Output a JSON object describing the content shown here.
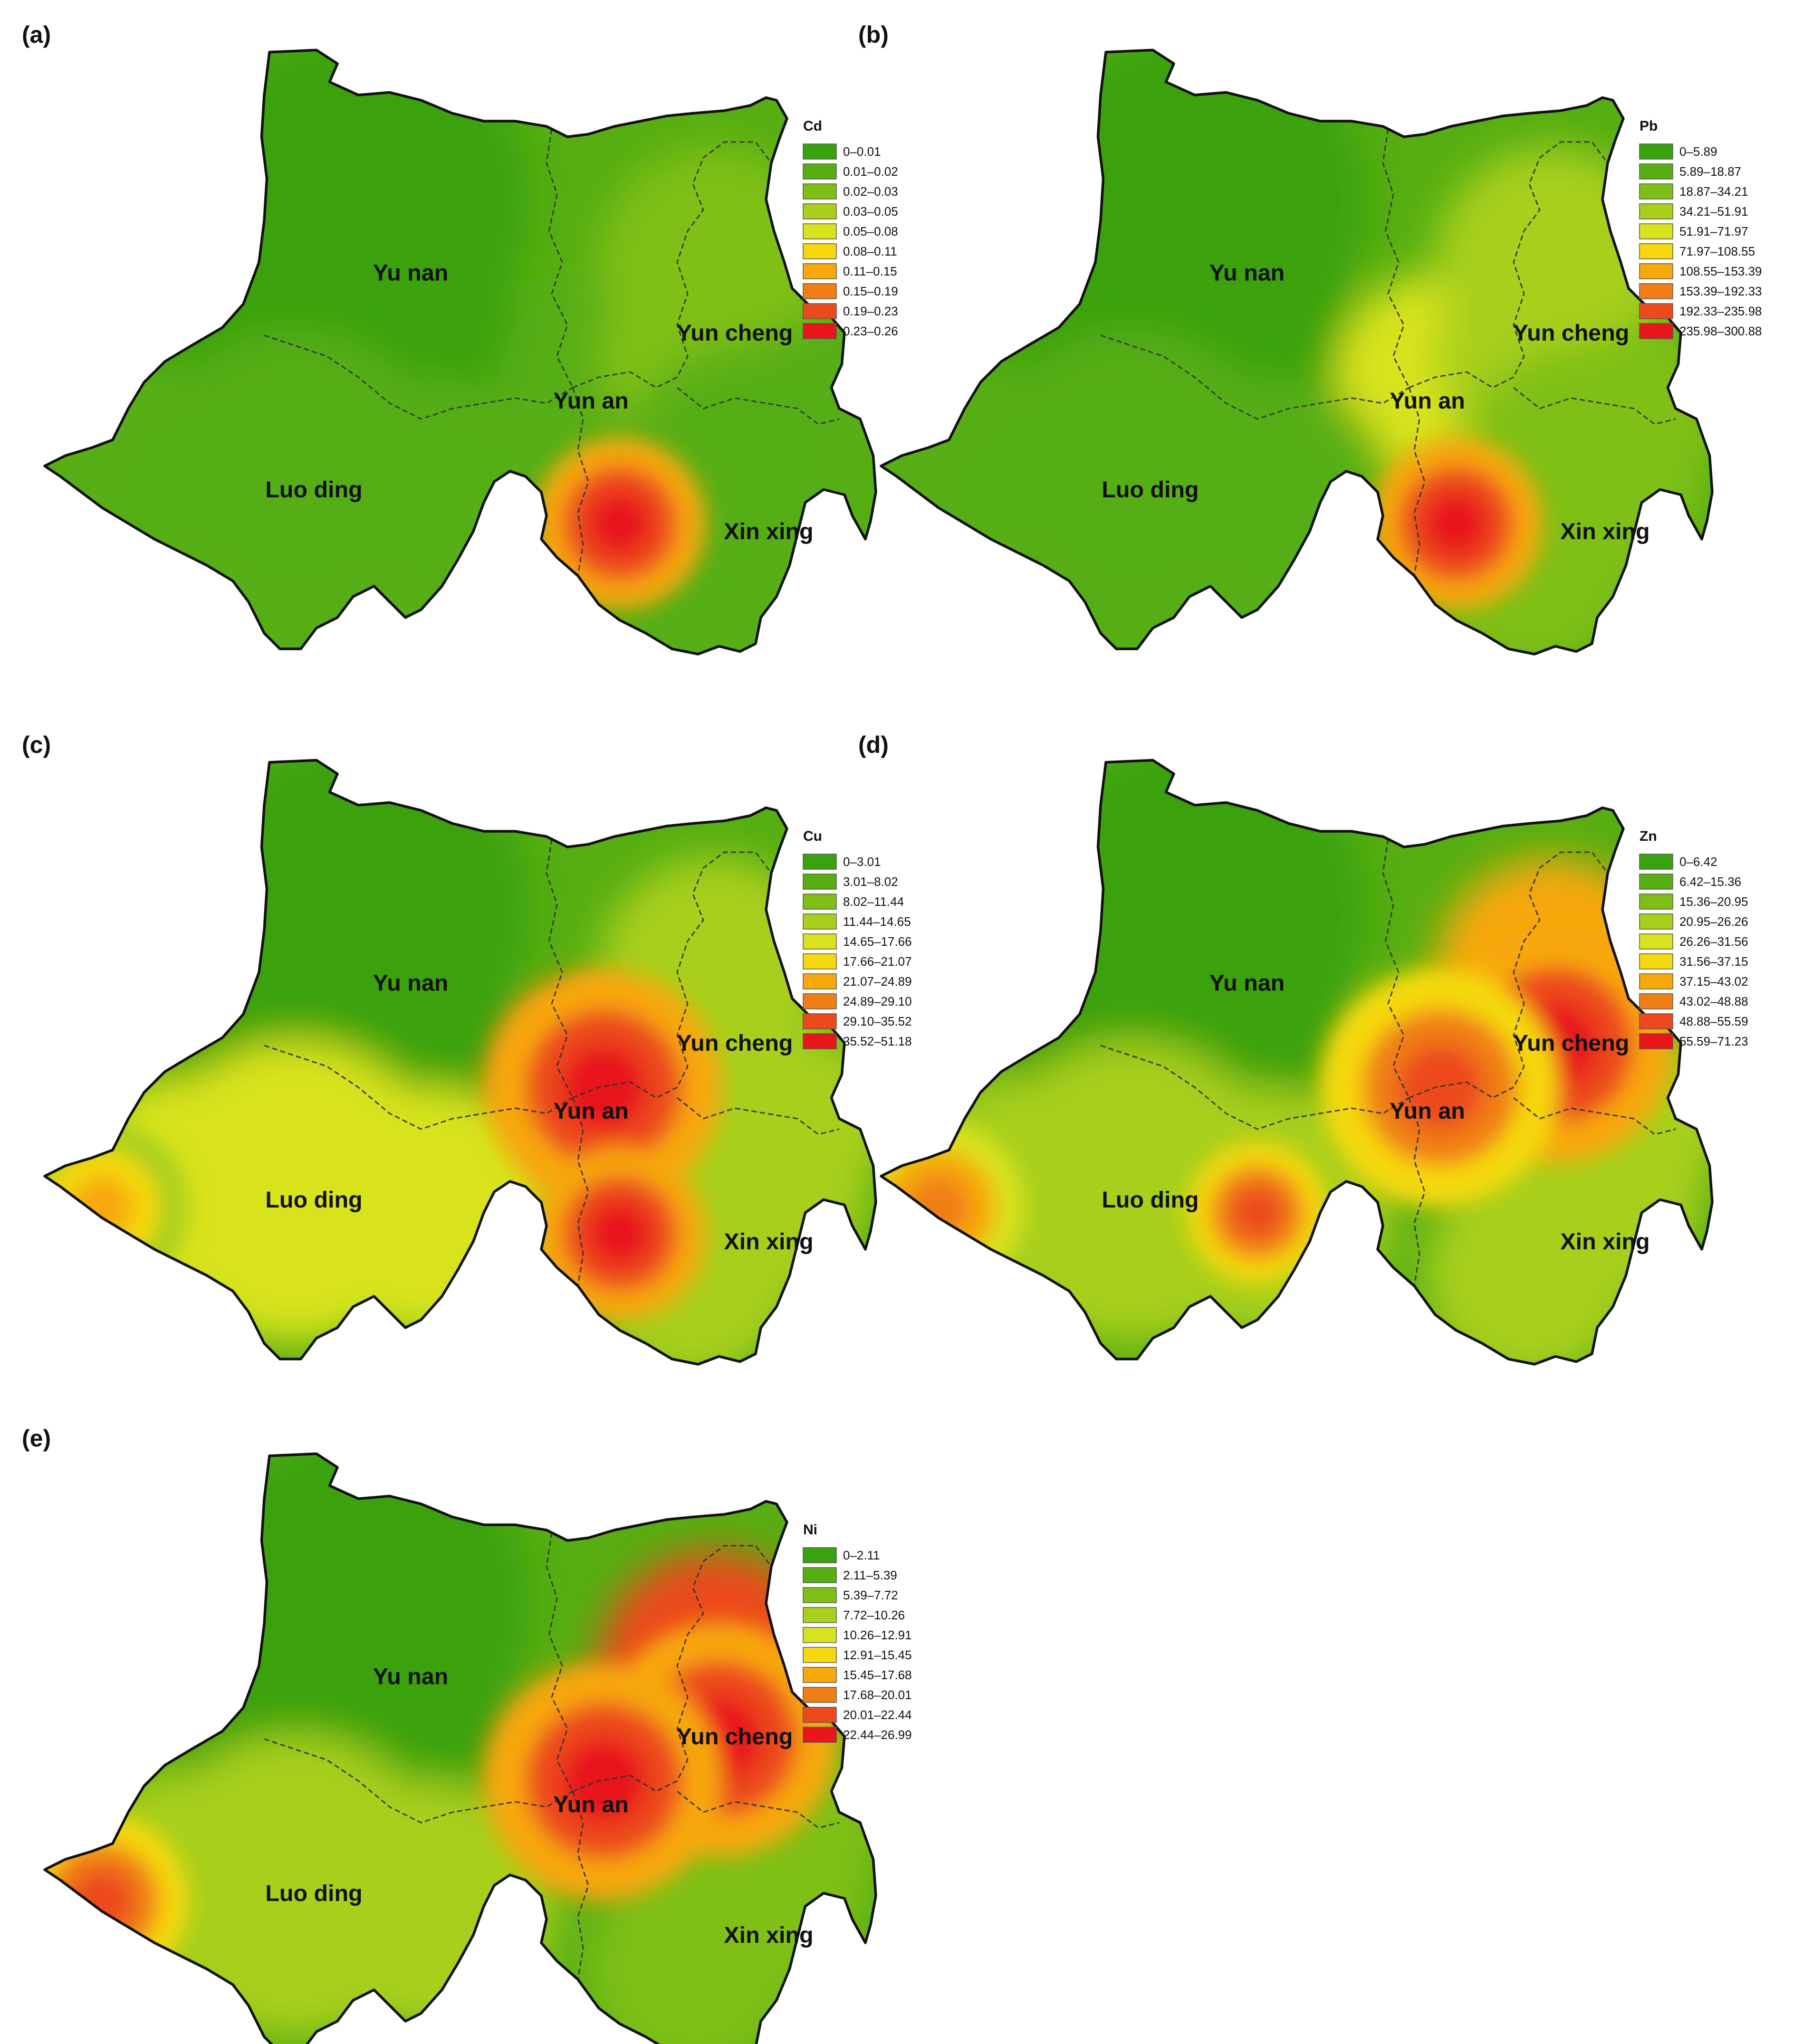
{
  "chart_data": [
    {
      "type": "heatmap",
      "panel": "(a)",
      "element": "Cd",
      "ranges": [
        "0–0.01",
        "0.01–0.02",
        "0.02–0.03",
        "0.03–0.05",
        "0.05–0.08",
        "0.08–0.11",
        "0.11–0.15",
        "0.15–0.19",
        "0.19–0.23",
        "0.23–0.26"
      ],
      "regions": [
        {
          "name": "Yu nan",
          "class": 0
        },
        {
          "name": "Yun an",
          "class": 1
        },
        {
          "name": "Yun cheng",
          "class": 2
        },
        {
          "name": "Luo ding",
          "class": 1
        },
        {
          "name": "Xin xing",
          "class": 1
        }
      ],
      "hotspots": [
        {
          "near": "Xin xing west",
          "class": 9
        }
      ],
      "legend_position": "top-right"
    },
    {
      "type": "heatmap",
      "panel": "(b)",
      "element": "Pb",
      "ranges": [
        "0–5.89",
        "5.89–18.87",
        "18.87–34.21",
        "34.21–51.91",
        "51.91–71.97",
        "71.97–108.55",
        "108.55–153.39",
        "153.39–192.33",
        "192.33–235.98",
        "235.98–300.88"
      ],
      "regions": [
        {
          "name": "Yu nan",
          "class": 0
        },
        {
          "name": "Yun an",
          "class": 4
        },
        {
          "name": "Yun cheng",
          "class": 3
        },
        {
          "name": "Luo ding",
          "class": 1
        },
        {
          "name": "Xin xing",
          "class": 2
        }
      ],
      "hotspots": [
        {
          "near": "Xin xing west",
          "class": 9
        }
      ],
      "legend_position": "top-right"
    },
    {
      "type": "heatmap",
      "panel": "(c)",
      "element": "Cu",
      "ranges": [
        "0–3.01",
        "3.01–8.02",
        "8.02–11.44",
        "11.44–14.65",
        "14.65–17.66",
        "17.66–21.07",
        "21.07–24.89",
        "24.89–29.10",
        "29.10–35.52",
        "35.52–51.18"
      ],
      "regions": [
        {
          "name": "Yu nan",
          "class": 0
        },
        {
          "name": "Yun an",
          "class": 8
        },
        {
          "name": "Yun cheng",
          "class": 3
        },
        {
          "name": "Luo ding",
          "class": 4
        },
        {
          "name": "Xin xing",
          "class": 3
        }
      ],
      "hotspots": [
        {
          "near": "Yun an",
          "class": 9
        },
        {
          "near": "Xin xing west",
          "class": 9
        },
        {
          "near": "Luo ding west",
          "class": 6
        }
      ],
      "legend_position": "top-right"
    },
    {
      "type": "heatmap",
      "panel": "(d)",
      "element": "Zn",
      "ranges": [
        "0–6.42",
        "6.42–15.36",
        "15.36–20.95",
        "20.95–26.26",
        "26.26–31.56",
        "31.56–37.15",
        "37.15–43.02",
        "43.02–48.88",
        "48.88–55.59",
        "55.59–71.23"
      ],
      "regions": [
        {
          "name": "Yu nan",
          "class": 0
        },
        {
          "name": "Yun an",
          "class": 5
        },
        {
          "name": "Yun cheng",
          "class": 6
        },
        {
          "name": "Luo ding",
          "class": 3
        },
        {
          "name": "Xin xing",
          "class": 3
        }
      ],
      "hotspots": [
        {
          "near": "Yun cheng",
          "class": 9
        },
        {
          "near": "Yun an",
          "class": 8
        },
        {
          "near": "Luo ding",
          "class": 8
        },
        {
          "near": "Luo ding west",
          "class": 7
        }
      ],
      "legend_position": "top-right"
    },
    {
      "type": "heatmap",
      "panel": "(e)",
      "element": "Ni",
      "ranges": [
        "0–2.11",
        "2.11–5.39",
        "5.39–7.72",
        "7.72–10.26",
        "10.26–12.91",
        "12.91–15.45",
        "15.45–17.68",
        "17.68–20.01",
        "20.01–22.44",
        "22.44–26.99"
      ],
      "regions": [
        {
          "name": "Yu nan",
          "class": 0
        },
        {
          "name": "Yun an",
          "class": 7
        },
        {
          "name": "Yun cheng",
          "class": 8
        },
        {
          "name": "Luo ding",
          "class": 3
        },
        {
          "name": "Xin xing",
          "class": 2
        }
      ],
      "hotspots": [
        {
          "near": "Yun cheng",
          "class": 9
        },
        {
          "near": "Yun an",
          "class": 9
        },
        {
          "near": "Luo ding west",
          "class": 8
        }
      ],
      "legend_position": "top-right"
    }
  ],
  "palette": [
    "#3aa20f",
    "#56ae12",
    "#7fbf15",
    "#a8cf1c",
    "#d8e31e",
    "#f5d90e",
    "#f7a80c",
    "#f07e16",
    "#ec4a1c",
    "#e8151b"
  ]
}
